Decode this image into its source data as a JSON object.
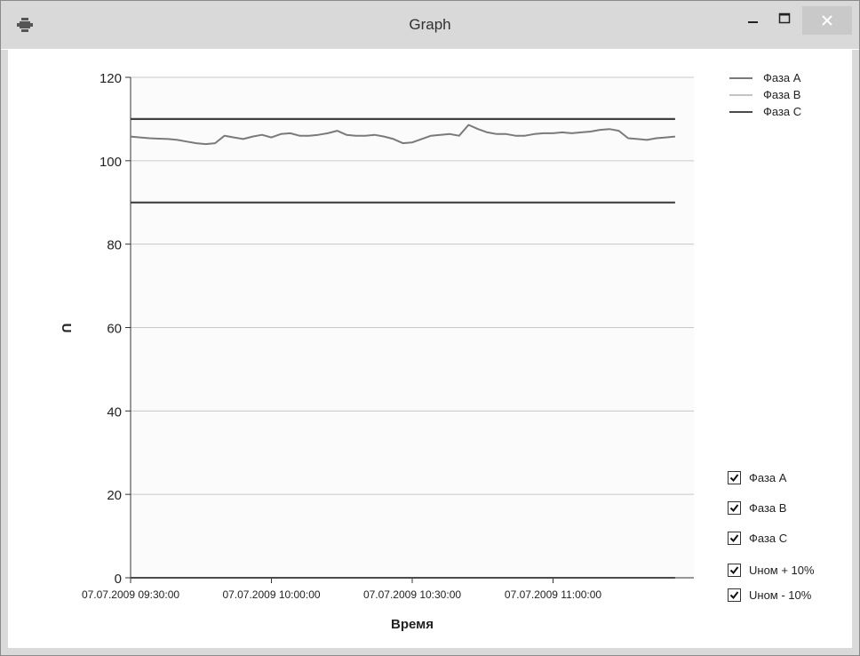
{
  "window": {
    "title": "Graph",
    "icon": "app-gear-icon",
    "controls": [
      "minimize-icon",
      "maximize-icon",
      "close-icon"
    ]
  },
  "legend": {
    "items": [
      {
        "label": "Фаза А",
        "color": "#7a7a7a"
      },
      {
        "label": "Фаза В",
        "color": "#c4c4c4"
      },
      {
        "label": "Фаза С",
        "color": "#4a4a4a"
      }
    ]
  },
  "checkboxes": [
    {
      "label": "Фаза А",
      "checked": true
    },
    {
      "label": "Фаза В",
      "checked": true
    },
    {
      "label": "Фаза С",
      "checked": true
    },
    {
      "label": "Uном + 10%",
      "checked": true
    },
    {
      "label": "Uном - 10%",
      "checked": true
    }
  ],
  "chart_data": {
    "type": "line",
    "xlabel": "Время",
    "ylabel": "U",
    "ylim": [
      0,
      120
    ],
    "yticks": [
      0,
      20,
      40,
      60,
      80,
      100,
      120
    ],
    "xlim": [
      "07.07.2009 09:30:00",
      "07.07.2009 11:30:00"
    ],
    "xticks": [
      "07.07.2009 09:30:00",
      "07.07.2009 10:00:00",
      "07.07.2009 10:30:00",
      "07.07.2009 11:00:00"
    ],
    "grid": true,
    "legend_position": "top-right",
    "series": [
      {
        "name": "Фаза А",
        "color": "#7a7a7a",
        "x": [
          "07.07.2009 09:30:00",
          "07.07.2009 09:32:00",
          "07.07.2009 09:34:00",
          "07.07.2009 09:36:00",
          "07.07.2009 09:38:00",
          "07.07.2009 09:40:00",
          "07.07.2009 09:42:00",
          "07.07.2009 09:44:00",
          "07.07.2009 09:46:00",
          "07.07.2009 09:48:00",
          "07.07.2009 09:50:00",
          "07.07.2009 09:52:00",
          "07.07.2009 09:54:00",
          "07.07.2009 09:56:00",
          "07.07.2009 09:58:00",
          "07.07.2009 10:00:00",
          "07.07.2009 10:02:00",
          "07.07.2009 10:04:00",
          "07.07.2009 10:06:00",
          "07.07.2009 10:08:00",
          "07.07.2009 10:10:00",
          "07.07.2009 10:12:00",
          "07.07.2009 10:14:00",
          "07.07.2009 10:16:00",
          "07.07.2009 10:18:00",
          "07.07.2009 10:20:00",
          "07.07.2009 10:22:00",
          "07.07.2009 10:24:00",
          "07.07.2009 10:26:00",
          "07.07.2009 10:28:00",
          "07.07.2009 10:30:00",
          "07.07.2009 10:32:00",
          "07.07.2009 10:34:00",
          "07.07.2009 10:36:00",
          "07.07.2009 10:38:00",
          "07.07.2009 10:40:00",
          "07.07.2009 10:42:00",
          "07.07.2009 10:44:00",
          "07.07.2009 10:46:00",
          "07.07.2009 10:48:00",
          "07.07.2009 10:50:00",
          "07.07.2009 10:52:00",
          "07.07.2009 10:54:00",
          "07.07.2009 10:56:00",
          "07.07.2009 10:58:00",
          "07.07.2009 11:00:00",
          "07.07.2009 11:02:00",
          "07.07.2009 11:04:00",
          "07.07.2009 11:06:00",
          "07.07.2009 11:08:00",
          "07.07.2009 11:10:00",
          "07.07.2009 11:12:00",
          "07.07.2009 11:14:00",
          "07.07.2009 11:16:00",
          "07.07.2009 11:18:00",
          "07.07.2009 11:20:00",
          "07.07.2009 11:22:00",
          "07.07.2009 11:24:00",
          "07.07.2009 11:26:00"
        ],
        "values": [
          105.8,
          105.6,
          105.4,
          105.3,
          105.2,
          105.0,
          104.6,
          104.2,
          104.0,
          104.2,
          106.0,
          105.6,
          105.2,
          105.8,
          106.2,
          105.6,
          106.4,
          106.6,
          106.0,
          106.0,
          106.2,
          106.6,
          107.2,
          106.2,
          106.0,
          106.0,
          106.2,
          105.8,
          105.2,
          104.2,
          104.4,
          105.2,
          106.0,
          106.2,
          106.4,
          106.0,
          108.6,
          107.6,
          106.8,
          106.4,
          106.4,
          106.0,
          106.0,
          106.4,
          106.6,
          106.6,
          106.8,
          106.6,
          106.8,
          107.0,
          107.4,
          107.6,
          107.2,
          105.4,
          105.2,
          105.0,
          105.4,
          105.6,
          105.8
        ]
      },
      {
        "name": "Фаза В",
        "color": "#c4c4c4",
        "x": [
          "07.07.2009 09:30:00",
          "07.07.2009 11:26:00"
        ],
        "values": [
          0,
          0
        ]
      },
      {
        "name": "Фаза С",
        "color": "#4a4a4a",
        "x": [
          "07.07.2009 09:30:00",
          "07.07.2009 11:26:00"
        ],
        "values": [
          0,
          0
        ]
      },
      {
        "name": "Uном + 10%",
        "color": "#404040",
        "x": [
          "07.07.2009 09:30:00",
          "07.07.2009 11:26:00"
        ],
        "values": [
          110,
          110
        ]
      },
      {
        "name": "Uном - 10%",
        "color": "#404040",
        "x": [
          "07.07.2009 09:30:00",
          "07.07.2009 11:26:00"
        ],
        "values": [
          90,
          90
        ]
      }
    ]
  }
}
